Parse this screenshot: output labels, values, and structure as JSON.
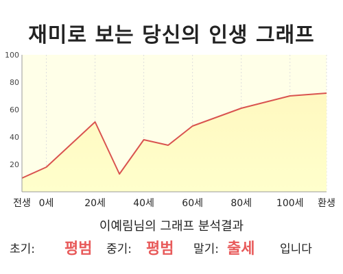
{
  "title": "재미로 보는 당신의 인생 그래프",
  "chart_data": {
    "type": "area",
    "title": "재미로 보는 당신의 인생 그래프",
    "x": [
      -10,
      0,
      20,
      30,
      40,
      50,
      60,
      80,
      100,
      115
    ],
    "y": [
      10,
      18,
      51,
      13,
      38,
      34,
      48,
      61,
      70,
      72
    ],
    "x_ticks": [
      {
        "x": -10,
        "label": "전생"
      },
      {
        "x": 0,
        "label": "0세"
      },
      {
        "x": 20,
        "label": "20세"
      },
      {
        "x": 40,
        "label": "40세"
      },
      {
        "x": 60,
        "label": "60세"
      },
      {
        "x": 80,
        "label": "80세"
      },
      {
        "x": 100,
        "label": "100세"
      },
      {
        "x": 115,
        "label": "환생"
      }
    ],
    "y_ticks": [
      20,
      40,
      60,
      80,
      100
    ],
    "xlim": [
      -10,
      115
    ],
    "ylim": [
      0,
      100
    ],
    "xlabel": "",
    "ylabel": "",
    "grid": "vertical dashed",
    "colors": {
      "line": "#d9534f",
      "fill_top": "#fff8c0",
      "fill_bottom": "#ffffcc",
      "plot_bg": "#ffffe8"
    }
  },
  "subtitle": "이예림님의 그래프 분석결과",
  "result": {
    "early_label": "초기:",
    "early_value": "평범",
    "middle_label": "중기:",
    "middle_value": "평범",
    "late_label": "말기:",
    "late_value": "출세",
    "suffix": "입니다",
    "value_color": "#e85a5a"
  }
}
